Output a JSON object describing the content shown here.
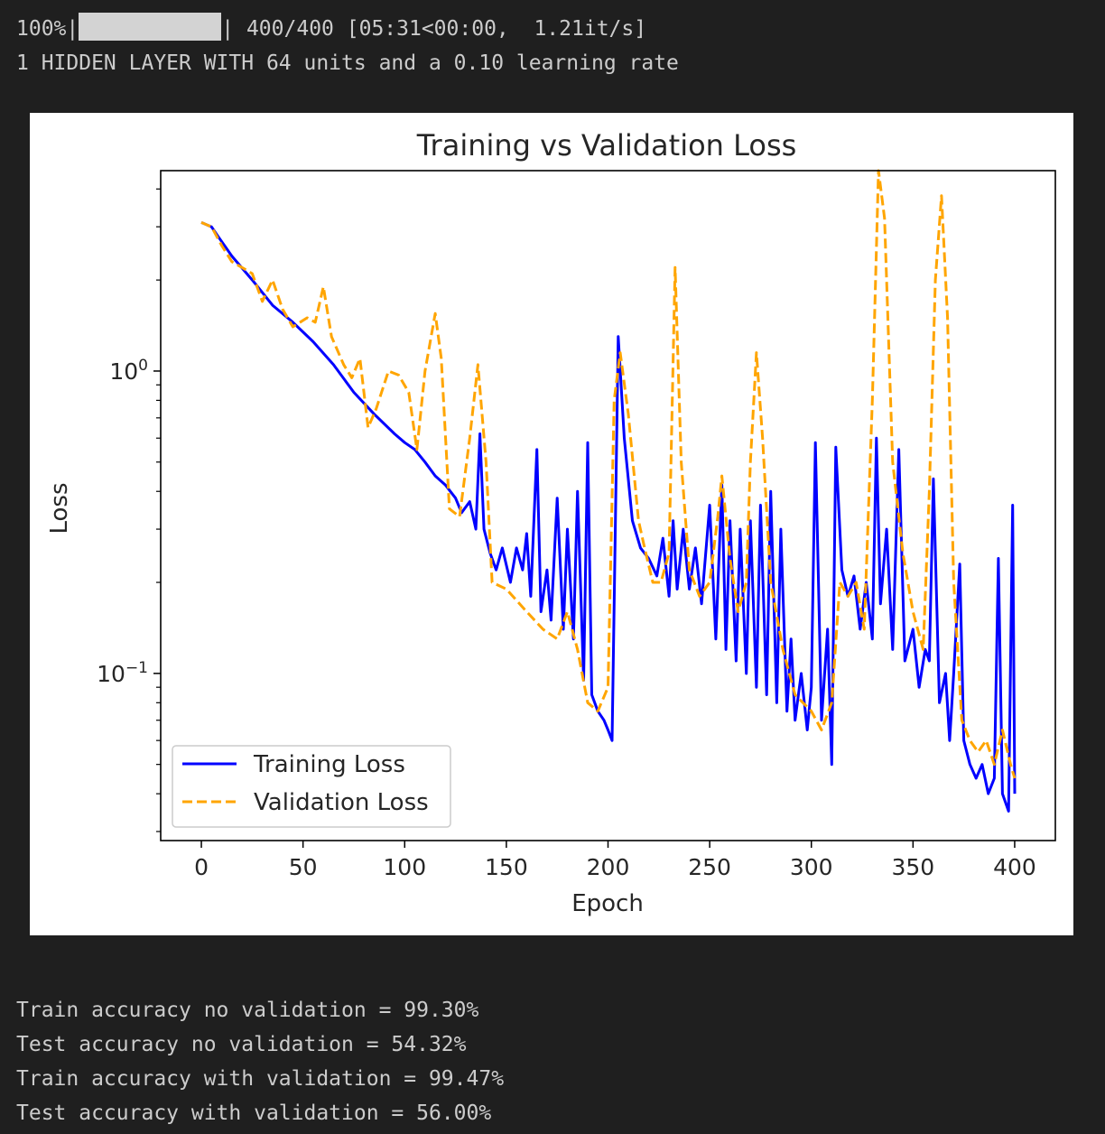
{
  "output": {
    "progress": {
      "percent_text": "100%",
      "fraction": 1.0,
      "count_text": "400/400",
      "timing_text": "[05:31<00:00,  1.21it/s]"
    },
    "config_line": "1 HIDDEN LAYER WITH 64 units and a 0.10 learning rate",
    "metrics": [
      "Train accuracy no validation = 99.30%",
      "Test accuracy no validation = 54.32%",
      "Train accuracy with validation = 99.47%",
      "Test accuracy with validation = 56.00%"
    ]
  },
  "chart_data": {
    "type": "line",
    "title": "Training vs Validation Loss",
    "xlabel": "Epoch",
    "ylabel": "Loss",
    "xscale": "linear",
    "yscale": "log",
    "xlim": [
      -20,
      420
    ],
    "ylim": [
      0.028,
      4.6
    ],
    "xticks": [
      0,
      50,
      100,
      150,
      200,
      250,
      300,
      350,
      400
    ],
    "yticks": [
      {
        "value": 1.0,
        "base": "10",
        "exp": "0"
      },
      {
        "value": 0.1,
        "base": "10",
        "exp": "−1"
      }
    ],
    "grid": false,
    "legend_position": "lower left",
    "series": [
      {
        "name": "Training Loss",
        "color": "#0000ff",
        "style": "solid",
        "points": [
          [
            0,
            3.1
          ],
          [
            5,
            3.0
          ],
          [
            8,
            2.8
          ],
          [
            15,
            2.4
          ],
          [
            25,
            2.0
          ],
          [
            35,
            1.65
          ],
          [
            45,
            1.45
          ],
          [
            55,
            1.25
          ],
          [
            65,
            1.05
          ],
          [
            75,
            0.85
          ],
          [
            85,
            0.72
          ],
          [
            95,
            0.62
          ],
          [
            100,
            0.58
          ],
          [
            105,
            0.55
          ],
          [
            110,
            0.5
          ],
          [
            115,
            0.45
          ],
          [
            120,
            0.42
          ],
          [
            125,
            0.38
          ],
          [
            128,
            0.34
          ],
          [
            132,
            0.37
          ],
          [
            135,
            0.3
          ],
          [
            137,
            0.62
          ],
          [
            139,
            0.3
          ],
          [
            142,
            0.25
          ],
          [
            145,
            0.22
          ],
          [
            148,
            0.26
          ],
          [
            152,
            0.2
          ],
          [
            155,
            0.26
          ],
          [
            158,
            0.22
          ],
          [
            160,
            0.29
          ],
          [
            162,
            0.18
          ],
          [
            165,
            0.55
          ],
          [
            167,
            0.16
          ],
          [
            170,
            0.22
          ],
          [
            172,
            0.15
          ],
          [
            175,
            0.38
          ],
          [
            178,
            0.14
          ],
          [
            180,
            0.3
          ],
          [
            183,
            0.13
          ],
          [
            185,
            0.4
          ],
          [
            188,
            0.095
          ],
          [
            190,
            0.58
          ],
          [
            192,
            0.085
          ],
          [
            195,
            0.075
          ],
          [
            198,
            0.07
          ],
          [
            200,
            0.065
          ],
          [
            202,
            0.06
          ],
          [
            205,
            1.3
          ],
          [
            208,
            0.6
          ],
          [
            212,
            0.32
          ],
          [
            216,
            0.26
          ],
          [
            220,
            0.24
          ],
          [
            224,
            0.21
          ],
          [
            227,
            0.28
          ],
          [
            230,
            0.18
          ],
          [
            232,
            0.32
          ],
          [
            234,
            0.19
          ],
          [
            237,
            0.3
          ],
          [
            240,
            0.19
          ],
          [
            243,
            0.26
          ],
          [
            246,
            0.17
          ],
          [
            250,
            0.36
          ],
          [
            253,
            0.13
          ],
          [
            256,
            0.42
          ],
          [
            258,
            0.12
          ],
          [
            260,
            0.32
          ],
          [
            263,
            0.11
          ],
          [
            265,
            0.3
          ],
          [
            268,
            0.1
          ],
          [
            270,
            0.32
          ],
          [
            273,
            0.09
          ],
          [
            275,
            0.36
          ],
          [
            278,
            0.085
          ],
          [
            280,
            0.4
          ],
          [
            283,
            0.08
          ],
          [
            285,
            0.3
          ],
          [
            288,
            0.075
          ],
          [
            290,
            0.13
          ],
          [
            292,
            0.07
          ],
          [
            295,
            0.1
          ],
          [
            298,
            0.065
          ],
          [
            300,
            0.09
          ],
          [
            302,
            0.58
          ],
          [
            305,
            0.07
          ],
          [
            308,
            0.14
          ],
          [
            310,
            0.05
          ],
          [
            312,
            0.56
          ],
          [
            315,
            0.22
          ],
          [
            318,
            0.18
          ],
          [
            321,
            0.21
          ],
          [
            324,
            0.14
          ],
          [
            327,
            0.2
          ],
          [
            330,
            0.13
          ],
          [
            332,
            0.6
          ],
          [
            334,
            0.17
          ],
          [
            337,
            0.3
          ],
          [
            340,
            0.12
          ],
          [
            343,
            0.55
          ],
          [
            346,
            0.11
          ],
          [
            350,
            0.14
          ],
          [
            353,
            0.09
          ],
          [
            356,
            0.12
          ],
          [
            358,
            0.11
          ],
          [
            360,
            0.44
          ],
          [
            363,
            0.08
          ],
          [
            366,
            0.1
          ],
          [
            368,
            0.06
          ],
          [
            370,
            0.1
          ],
          [
            373,
            0.23
          ],
          [
            375,
            0.06
          ],
          [
            378,
            0.05
          ],
          [
            381,
            0.045
          ],
          [
            384,
            0.05
          ],
          [
            387,
            0.04
          ],
          [
            390,
            0.045
          ],
          [
            392,
            0.24
          ],
          [
            394,
            0.04
          ],
          [
            397,
            0.035
          ],
          [
            399,
            0.36
          ],
          [
            400,
            0.04
          ]
        ]
      },
      {
        "name": "Validation Loss",
        "color": "#ffa500",
        "style": "dashed",
        "points": [
          [
            0,
            3.1
          ],
          [
            5,
            3.0
          ],
          [
            10,
            2.6
          ],
          [
            15,
            2.3
          ],
          [
            20,
            2.2
          ],
          [
            25,
            2.1
          ],
          [
            30,
            1.7
          ],
          [
            35,
            2.0
          ],
          [
            40,
            1.6
          ],
          [
            45,
            1.4
          ],
          [
            52,
            1.5
          ],
          [
            56,
            1.45
          ],
          [
            60,
            1.9
          ],
          [
            64,
            1.3
          ],
          [
            70,
            1.05
          ],
          [
            74,
            0.95
          ],
          [
            78,
            1.1
          ],
          [
            82,
            0.65
          ],
          [
            86,
            0.75
          ],
          [
            92,
            1.0
          ],
          [
            97,
            0.97
          ],
          [
            102,
            0.85
          ],
          [
            106,
            0.55
          ],
          [
            110,
            1.0
          ],
          [
            115,
            1.55
          ],
          [
            118,
            1.1
          ],
          [
            122,
            0.35
          ],
          [
            127,
            0.33
          ],
          [
            132,
            0.6
          ],
          [
            136,
            1.05
          ],
          [
            140,
            0.5
          ],
          [
            143,
            0.2
          ],
          [
            150,
            0.19
          ],
          [
            160,
            0.16
          ],
          [
            168,
            0.14
          ],
          [
            175,
            0.13
          ],
          [
            180,
            0.16
          ],
          [
            185,
            0.12
          ],
          [
            190,
            0.08
          ],
          [
            195,
            0.075
          ],
          [
            200,
            0.09
          ],
          [
            203,
            0.8
          ],
          [
            206,
            1.15
          ],
          [
            210,
            0.72
          ],
          [
            215,
            0.32
          ],
          [
            218,
            0.26
          ],
          [
            222,
            0.2
          ],
          [
            226,
            0.2
          ],
          [
            230,
            0.25
          ],
          [
            233,
            2.2
          ],
          [
            236,
            0.5
          ],
          [
            240,
            0.22
          ],
          [
            245,
            0.18
          ],
          [
            250,
            0.2
          ],
          [
            254,
            0.33
          ],
          [
            256,
            0.45
          ],
          [
            260,
            0.24
          ],
          [
            264,
            0.16
          ],
          [
            268,
            0.2
          ],
          [
            270,
            0.5
          ],
          [
            273,
            1.15
          ],
          [
            276,
            0.6
          ],
          [
            280,
            0.2
          ],
          [
            286,
            0.12
          ],
          [
            292,
            0.085
          ],
          [
            300,
            0.075
          ],
          [
            305,
            0.065
          ],
          [
            310,
            0.08
          ],
          [
            314,
            0.2
          ],
          [
            318,
            0.18
          ],
          [
            322,
            0.2
          ],
          [
            326,
            0.14
          ],
          [
            330,
            0.8
          ],
          [
            333,
            4.6
          ],
          [
            336,
            3.2
          ],
          [
            340,
            0.5
          ],
          [
            345,
            0.25
          ],
          [
            350,
            0.16
          ],
          [
            355,
            0.12
          ],
          [
            358,
            0.4
          ],
          [
            361,
            2.0
          ],
          [
            364,
            3.8
          ],
          [
            367,
            1.5
          ],
          [
            370,
            0.2
          ],
          [
            374,
            0.07
          ],
          [
            378,
            0.06
          ],
          [
            382,
            0.055
          ],
          [
            386,
            0.06
          ],
          [
            390,
            0.05
          ],
          [
            394,
            0.065
          ],
          [
            398,
            0.05
          ],
          [
            400,
            0.045
          ]
        ]
      }
    ]
  }
}
